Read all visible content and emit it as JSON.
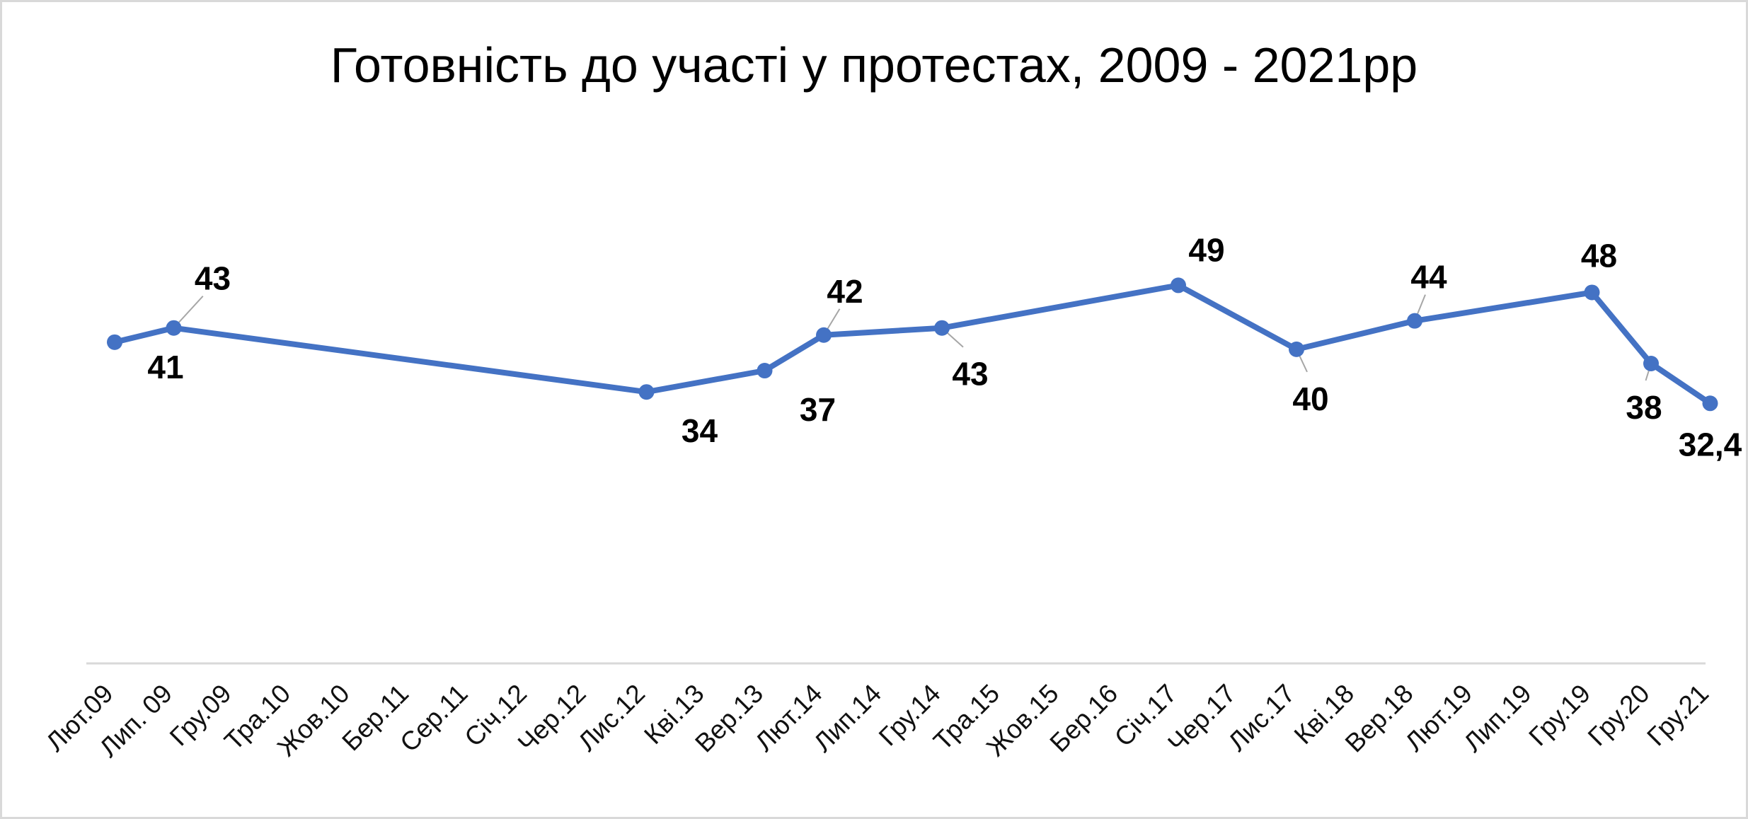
{
  "chart_data": {
    "type": "line",
    "title": "Готовність до участі у протестах, 2009 - 2021рр",
    "xlabel": "",
    "ylabel": "",
    "ylim": [
      0,
      70
    ],
    "grid": false,
    "legend": "none",
    "color": "#4472C4",
    "categories": [
      "Лют.09",
      "Лип. 09",
      "Гру.09",
      "Тра.10",
      "Жов.10",
      "Бер.11",
      "Сер.11",
      "Січ.12",
      "Чер.12",
      "Лис.12",
      "Кві.13",
      "Вер.13",
      "Лют.14",
      "Лип.14",
      "Гру.14",
      "Тра.15",
      "Жов.15",
      "Бер.16",
      "Січ.17",
      "Чер.17",
      "Лис.17",
      "Кві.18",
      "Вер.18",
      "Лют.19",
      "Лип.19",
      "Гру.19",
      "Гру.20",
      "Гру.21"
    ],
    "points": [
      {
        "category": "Лют.09",
        "value": 41,
        "label": "41"
      },
      {
        "category": "Лип. 09",
        "value": 43,
        "label": "43"
      },
      {
        "category": "Лис.12",
        "value": 34,
        "label": "34"
      },
      {
        "category": "Вер.13",
        "value": 37,
        "label": "37"
      },
      {
        "category": "Лют.14",
        "value": 42,
        "label": "42"
      },
      {
        "category": "Гру.14",
        "value": 43,
        "label": "43"
      },
      {
        "category": "Січ.17",
        "value": 49,
        "label": "49"
      },
      {
        "category": "Лис.17",
        "value": 40,
        "label": "40"
      },
      {
        "category": "Вер.18",
        "value": 44,
        "label": "44"
      },
      {
        "category": "Гру.19",
        "value": 48,
        "label": "48"
      },
      {
        "category": "Гру.20",
        "value": 38,
        "label": "38"
      },
      {
        "category": "Гру.21",
        "value": 32.4,
        "label": "32,4"
      }
    ]
  }
}
